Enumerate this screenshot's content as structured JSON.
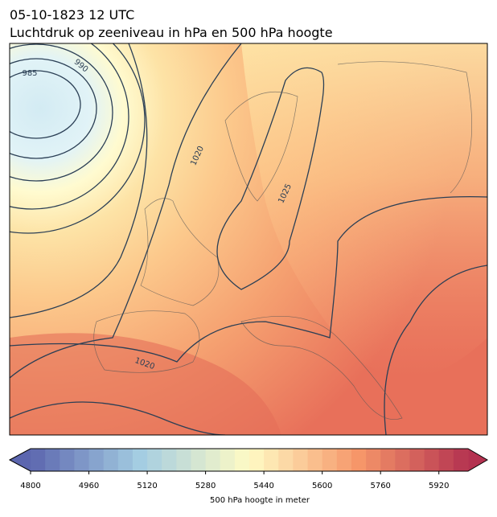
{
  "header": {
    "title": "05-10-1823 12 UTC",
    "subtitle": "Luchtdruk op zeeniveau in hPa en 500 hPa hoogte"
  },
  "map": {
    "contour_labels": [
      "985",
      "990",
      "1020",
      "1025",
      "1020"
    ]
  },
  "colorbar": {
    "min": 4800,
    "max": 6000,
    "step": 40,
    "ticks": [
      4800,
      4960,
      5120,
      5280,
      5440,
      5600,
      5760,
      5920
    ],
    "label": "500 hPa hoogte in meter"
  }
}
